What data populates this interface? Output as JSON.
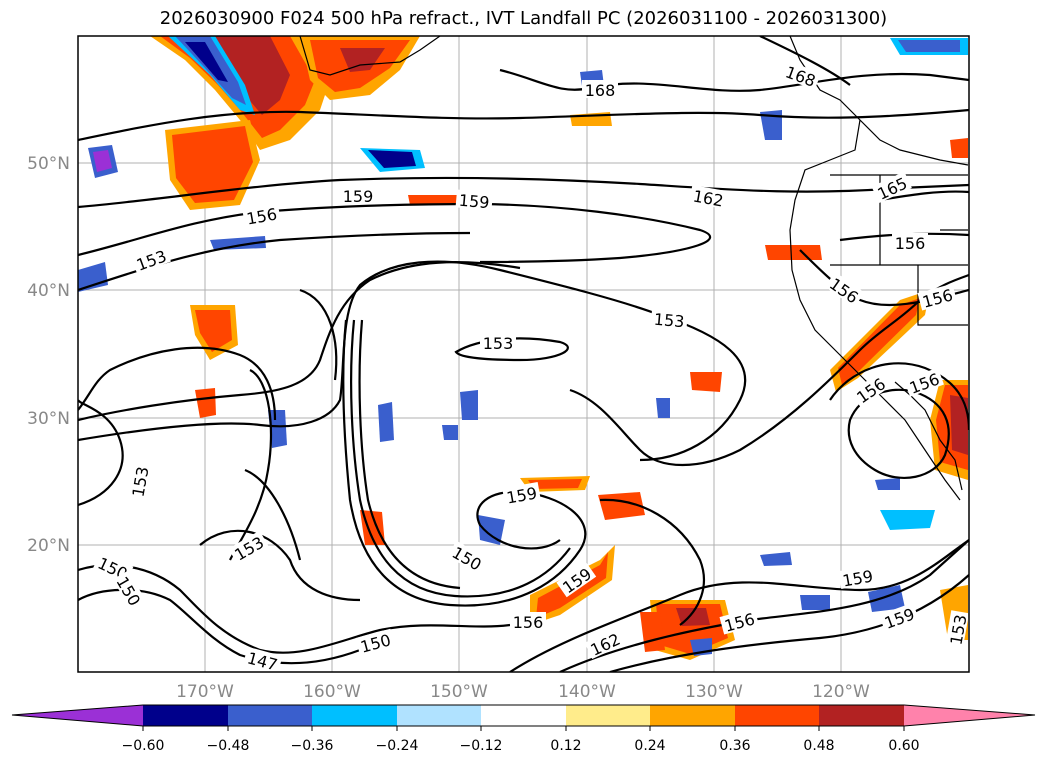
{
  "title": "2026030900 F024 500 hPa refract., IVT Landfall PC (2026031100 - 2026031300)",
  "lat_ticks": [
    "50°N",
    "40°N",
    "30°N",
    "20°N"
  ],
  "lon_ticks": [
    "170°W",
    "160°W",
    "150°W",
    "140°W",
    "130°W",
    "120°W"
  ],
  "contour_labels": [
    "168",
    "168",
    "165",
    "162",
    "159",
    "159",
    "156",
    "156",
    "156",
    "156",
    "153",
    "153",
    "153",
    "153",
    "153",
    "150",
    "150",
    "150",
    "150",
    "147",
    "159",
    "156",
    "156",
    "159",
    "162",
    "156",
    "156",
    "159",
    "159",
    "153"
  ],
  "colorbar": {
    "ticks": [
      "−0.60",
      "−0.48",
      "−0.36",
      "−0.24",
      "−0.12",
      "0.12",
      "0.24",
      "0.36",
      "0.48",
      "0.60"
    ],
    "colors": [
      "#9b30d6",
      "#00008b",
      "#3a5fcd",
      "#00bfff",
      "#b0e2ff",
      "#ffffff",
      "#ffec8b",
      "#ffa500",
      "#ff4500",
      "#b22222",
      "#ff82ab"
    ]
  }
}
